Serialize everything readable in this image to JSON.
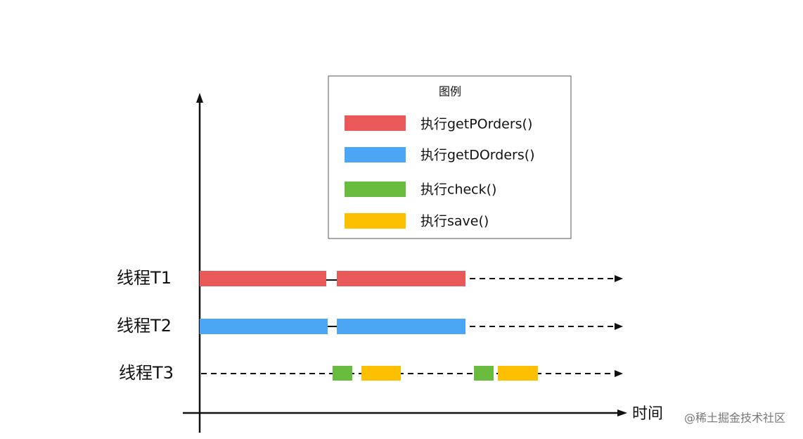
{
  "legend": {
    "title": "图例",
    "items": [
      "执行getPOrders()",
      "执行getDOrders()",
      "执行check()",
      "执行save()"
    ]
  },
  "rows": [
    "线程T1",
    "线程T2",
    "线程T3"
  ],
  "x_axis_label": "时间",
  "watermark": "@稀土掘金技术社区"
}
